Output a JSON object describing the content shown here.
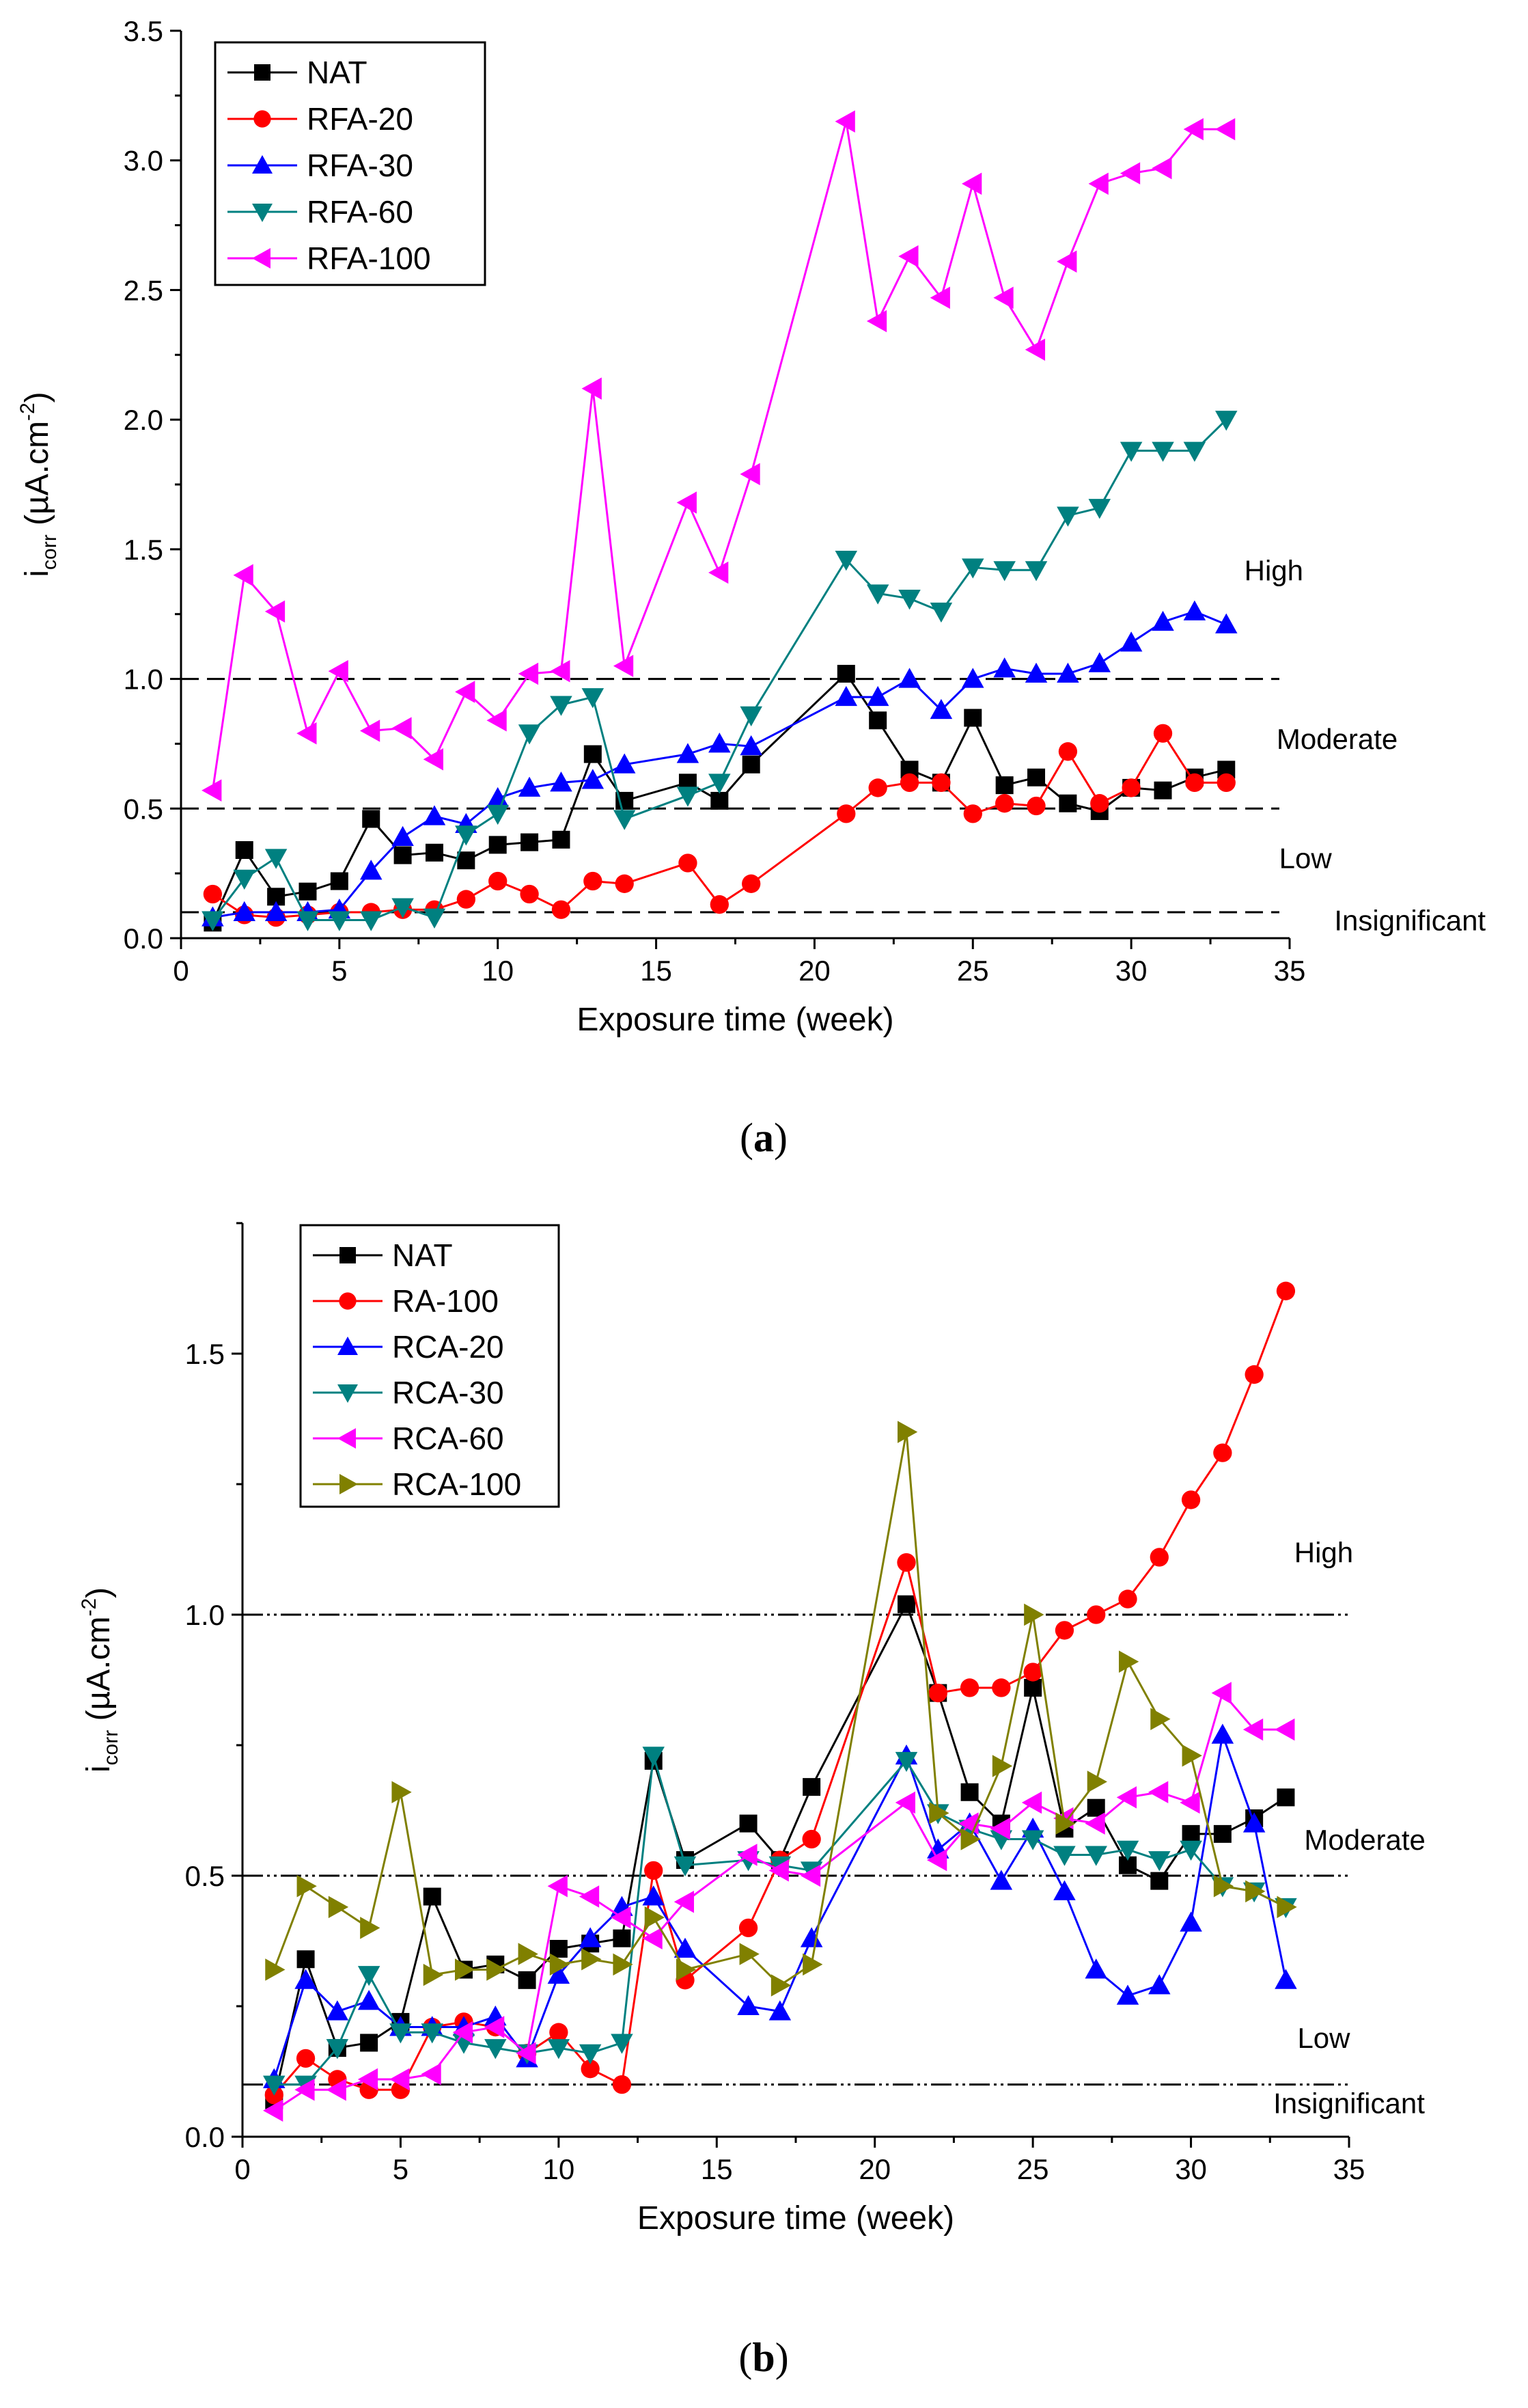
{
  "chart_data": [
    {
      "type": "line",
      "panel": "a",
      "caption": [
        "(",
        "a",
        ")"
      ],
      "xlabel": "Exposure time (week)",
      "ylabel": {
        "main": "i",
        "sub": "corr",
        "units_pre": " (µA.cm",
        "sup": "-2",
        "units_post": ")"
      },
      "xlim": [
        0,
        35
      ],
      "ylim": [
        0,
        3.5
      ],
      "xticks": [
        "0",
        "5",
        "10",
        "15",
        "20",
        "25",
        "30",
        "35"
      ],
      "yticks": [
        "0.0",
        "0.5",
        "1.0",
        "1.5",
        "2.0",
        "2.5",
        "3.0",
        "3.5"
      ],
      "legend_position": "top-left",
      "thresholds": [
        {
          "value": 1.0,
          "style": "dashed"
        },
        {
          "value": 0.5,
          "style": "dashed"
        },
        {
          "value": 0.1,
          "style": "dashed"
        }
      ],
      "zones": [
        {
          "label": "High",
          "x": 34.5,
          "y": 1.38
        },
        {
          "label": "Moderate",
          "x": 36.5,
          "y": 0.73
        },
        {
          "label": "Low",
          "x": 35.5,
          "y": 0.27
        },
        {
          "label": "Insignificant",
          "x": 38.8,
          "y": 0.03
        }
      ],
      "series": [
        {
          "name": "NAT",
          "color": "#000000",
          "marker": "square",
          "x": [
            1,
            2,
            3,
            4,
            5,
            6,
            7,
            8,
            9,
            10,
            11,
            12,
            13,
            14,
            16,
            17,
            18,
            21,
            22,
            23,
            24,
            25,
            26,
            27,
            28,
            29,
            30,
            31,
            32,
            33
          ],
          "y": [
            0.06,
            0.34,
            0.16,
            0.18,
            0.22,
            0.46,
            0.32,
            0.33,
            0.3,
            0.36,
            0.37,
            0.38,
            0.71,
            0.53,
            0.6,
            0.53,
            0.67,
            1.02,
            0.84,
            0.65,
            0.6,
            0.85,
            0.59,
            0.62,
            0.52,
            0.49,
            0.58,
            0.57,
            0.62,
            0.65
          ]
        },
        {
          "name": "RFA-20",
          "color": "#ff0000",
          "marker": "circle",
          "x": [
            1,
            2,
            3,
            4,
            5,
            6,
            7,
            8,
            9,
            10,
            11,
            12,
            13,
            14,
            16,
            17,
            18,
            21,
            22,
            23,
            24,
            25,
            26,
            27,
            28,
            29,
            30,
            31,
            32,
            33
          ],
          "y": [
            0.17,
            0.09,
            0.08,
            0.09,
            0.1,
            0.1,
            0.11,
            0.11,
            0.15,
            0.22,
            0.17,
            0.11,
            0.22,
            0.21,
            0.29,
            0.13,
            0.21,
            0.48,
            0.58,
            0.6,
            0.6,
            0.48,
            0.52,
            0.51,
            0.72,
            0.52,
            0.58,
            0.79,
            0.6,
            0.6
          ]
        },
        {
          "name": "RFA-30",
          "color": "#0000ff",
          "marker": "triangle-up",
          "x": [
            1,
            2,
            3,
            4,
            5,
            6,
            7,
            8,
            9,
            10,
            11,
            12,
            13,
            14,
            16,
            17,
            18,
            21,
            22,
            23,
            24,
            25,
            26,
            27,
            28,
            29,
            30,
            31,
            32,
            33
          ],
          "y": [
            0.08,
            0.1,
            0.1,
            0.1,
            0.11,
            0.26,
            0.39,
            0.47,
            0.44,
            0.54,
            0.58,
            0.6,
            0.61,
            0.67,
            0.71,
            0.75,
            0.74,
            0.93,
            0.93,
            1.0,
            0.88,
            1.0,
            1.04,
            1.02,
            1.02,
            1.06,
            1.14,
            1.22,
            1.26,
            1.21
          ]
        },
        {
          "name": "RFA-60",
          "color": "#008080",
          "marker": "triangle-down",
          "x": [
            1,
            2,
            3,
            4,
            5,
            6,
            7,
            8,
            9,
            10,
            11,
            12,
            13,
            14,
            16,
            17,
            18,
            21,
            22,
            23,
            24,
            25,
            26,
            27,
            28,
            29,
            30,
            31,
            32,
            33
          ],
          "y": [
            0.07,
            0.23,
            0.31,
            0.07,
            0.07,
            0.07,
            0.12,
            0.08,
            0.4,
            0.48,
            0.79,
            0.9,
            0.93,
            0.46,
            0.55,
            0.6,
            0.86,
            1.46,
            1.33,
            1.31,
            1.26,
            1.43,
            1.42,
            1.42,
            1.63,
            1.66,
            1.88,
            1.88,
            1.88,
            2.0
          ]
        },
        {
          "name": "RFA-100",
          "color": "#ff00ff",
          "marker": "triangle-left",
          "x": [
            1,
            2,
            3,
            4,
            5,
            6,
            7,
            8,
            9,
            10,
            11,
            12,
            13,
            14,
            16,
            17,
            18,
            21,
            22,
            23,
            24,
            25,
            26,
            27,
            28,
            29,
            30,
            31,
            32,
            33
          ],
          "y": [
            0.57,
            1.4,
            1.26,
            0.79,
            1.03,
            0.8,
            0.81,
            0.69,
            0.95,
            0.84,
            1.02,
            1.03,
            2.12,
            1.05,
            1.68,
            1.41,
            1.79,
            3.15,
            2.38,
            2.63,
            2.47,
            2.91,
            2.47,
            2.27,
            2.61,
            2.91,
            2.95,
            2.97,
            3.12,
            3.12
          ]
        }
      ]
    },
    {
      "type": "line",
      "panel": "b",
      "caption": [
        "(",
        "b",
        ")"
      ],
      "xlabel": "Exposure time (week)",
      "ylabel": {
        "main": "i",
        "sub": "corr",
        "units_pre": " (µA.cm",
        "sup": "-2",
        "units_post": ")"
      },
      "xlim": [
        0,
        35
      ],
      "ylim": [
        0,
        1.75
      ],
      "xticks": [
        "0",
        "5",
        "10",
        "15",
        "20",
        "25",
        "30",
        "35"
      ],
      "yticks": [
        "0.0",
        "0.5",
        "1.0",
        "1.5"
      ],
      "ytick_values": [
        0,
        0.5,
        1.0,
        1.5
      ],
      "legend_position": "top-left",
      "thresholds": [
        {
          "value": 1.0,
          "style": "dash-dot"
        },
        {
          "value": 0.5,
          "style": "dash-dot"
        },
        {
          "value": 0.1,
          "style": "dash-dot"
        }
      ],
      "zones": [
        {
          "label": "High",
          "x": 34.2,
          "y": 1.1
        },
        {
          "label": "Moderate",
          "x": 35.5,
          "y": 0.55
        },
        {
          "label": "Low",
          "x": 34.2,
          "y": 0.17
        },
        {
          "label": "Insignificant",
          "x": 35.0,
          "y": 0.045
        }
      ],
      "series": [
        {
          "name": "NAT",
          "color": "#000000",
          "marker": "square",
          "x": [
            1,
            2,
            3,
            4,
            5,
            6,
            7,
            8,
            9,
            10,
            11,
            12,
            13,
            14,
            16,
            17,
            18,
            21,
            22,
            23,
            24,
            25,
            26,
            27,
            28,
            29,
            30,
            31,
            32,
            33
          ],
          "y": [
            0.07,
            0.34,
            0.17,
            0.18,
            0.22,
            0.46,
            0.32,
            0.33,
            0.3,
            0.36,
            0.37,
            0.38,
            0.72,
            0.53,
            0.6,
            0.53,
            0.67,
            1.02,
            0.85,
            0.66,
            0.6,
            0.86,
            0.59,
            0.63,
            0.52,
            0.49,
            0.58,
            0.58,
            0.61,
            0.65
          ]
        },
        {
          "name": "RA-100",
          "color": "#ff0000",
          "marker": "circle",
          "x": [
            1,
            2,
            3,
            4,
            5,
            6,
            7,
            8,
            9,
            10,
            11,
            12,
            13,
            14,
            16,
            17,
            18,
            21,
            22,
            23,
            24,
            25,
            26,
            27,
            28,
            29,
            30,
            31,
            32,
            33
          ],
          "y": [
            0.08,
            0.15,
            0.11,
            0.09,
            0.09,
            0.21,
            0.22,
            0.21,
            0.16,
            0.2,
            0.13,
            0.1,
            0.51,
            0.3,
            0.4,
            0.53,
            0.57,
            1.1,
            0.85,
            0.86,
            0.86,
            0.89,
            0.97,
            1.0,
            1.03,
            1.11,
            1.22,
            1.31,
            1.46,
            1.62
          ]
        },
        {
          "name": "RCA-20",
          "color": "#0000ff",
          "marker": "triangle-up",
          "x": [
            1,
            2,
            3,
            4,
            5,
            6,
            7,
            8,
            9,
            10,
            11,
            12,
            13,
            14,
            16,
            17,
            18,
            21,
            22,
            23,
            24,
            25,
            26,
            27,
            28,
            29,
            30,
            31,
            32,
            33
          ],
          "y": [
            0.11,
            0.3,
            0.24,
            0.26,
            0.21,
            0.21,
            0.21,
            0.23,
            0.15,
            0.31,
            0.38,
            0.44,
            0.46,
            0.36,
            0.25,
            0.24,
            0.38,
            0.73,
            0.55,
            0.6,
            0.49,
            0.59,
            0.47,
            0.32,
            0.27,
            0.29,
            0.41,
            0.77,
            0.6,
            0.3
          ]
        },
        {
          "name": "RCA-30",
          "color": "#008080",
          "marker": "triangle-down",
          "x": [
            1,
            2,
            3,
            4,
            5,
            6,
            7,
            8,
            9,
            10,
            11,
            12,
            13,
            14,
            16,
            17,
            18,
            21,
            22,
            23,
            24,
            25,
            26,
            27,
            28,
            29,
            30,
            31,
            32,
            33
          ],
          "y": [
            0.1,
            0.1,
            0.17,
            0.31,
            0.2,
            0.2,
            0.18,
            0.17,
            0.16,
            0.17,
            0.16,
            0.18,
            0.73,
            0.52,
            0.53,
            0.52,
            0.51,
            0.72,
            0.62,
            0.59,
            0.57,
            0.57,
            0.54,
            0.54,
            0.55,
            0.53,
            0.55,
            0.48,
            0.47,
            0.44
          ]
        },
        {
          "name": "RCA-60",
          "color": "#ff00ff",
          "marker": "triangle-left",
          "x": [
            1,
            2,
            3,
            4,
            5,
            6,
            7,
            8,
            9,
            10,
            11,
            12,
            13,
            14,
            16,
            17,
            18,
            21,
            22,
            23,
            24,
            25,
            26,
            27,
            28,
            29,
            30,
            31,
            32,
            33
          ],
          "y": [
            0.05,
            0.09,
            0.09,
            0.11,
            0.11,
            0.12,
            0.2,
            0.21,
            0.16,
            0.48,
            0.46,
            0.42,
            0.38,
            0.45,
            0.54,
            0.51,
            0.5,
            0.64,
            0.53,
            0.6,
            0.59,
            0.64,
            0.61,
            0.6,
            0.65,
            0.66,
            0.64,
            0.85,
            0.78,
            0.78
          ]
        },
        {
          "name": "RCA-100",
          "color": "#808000",
          "marker": "triangle-right",
          "x": [
            1,
            2,
            3,
            4,
            5,
            6,
            7,
            8,
            9,
            10,
            11,
            12,
            13,
            14,
            16,
            17,
            18,
            21,
            22,
            23,
            24,
            25,
            26,
            27,
            28,
            29,
            30,
            31,
            32,
            33
          ],
          "y": [
            0.32,
            0.48,
            0.44,
            0.4,
            0.66,
            0.31,
            0.32,
            0.32,
            0.35,
            0.33,
            0.34,
            0.33,
            0.42,
            0.32,
            0.35,
            0.29,
            0.33,
            1.35,
            0.62,
            0.57,
            0.71,
            1.0,
            0.6,
            0.68,
            0.91,
            0.8,
            0.73,
            0.48,
            0.47,
            0.44
          ]
        }
      ]
    }
  ]
}
